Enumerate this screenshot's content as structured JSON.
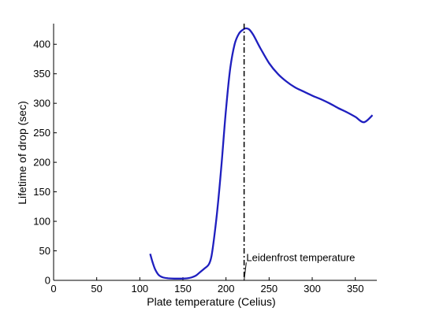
{
  "chart_data": {
    "type": "line",
    "title": "",
    "xlabel": "Plate temperature (Celius)",
    "ylabel": "Lifetime of drop (sec)",
    "xlim": [
      0,
      375
    ],
    "ylim": [
      0,
      435
    ],
    "xticks": [
      0,
      50,
      100,
      150,
      200,
      250,
      300,
      350
    ],
    "yticks": [
      0,
      50,
      100,
      150,
      200,
      250,
      300,
      350,
      400
    ],
    "grid": false,
    "series": [
      {
        "color": "#1f1fbf",
        "x": [
          112,
          115,
          118,
          122,
          127,
          133,
          140,
          148,
          155,
          160,
          165,
          170,
          175,
          180,
          183,
          186,
          190,
          195,
          200,
          205,
          210,
          215,
          220,
          223,
          227,
          232,
          240,
          250,
          260,
          270,
          280,
          290,
          300,
          310,
          320,
          330,
          340,
          350,
          360,
          370
        ],
        "y": [
          45,
          30,
          18,
          9,
          5,
          3.5,
          3,
          3,
          3.5,
          5,
          8,
          14,
          20,
          27,
          40,
          70,
          120,
          200,
          290,
          360,
          400,
          418,
          425,
          427,
          425,
          415,
          393,
          368,
          350,
          337,
          327,
          320,
          313,
          307,
          300,
          292,
          285,
          277,
          268,
          280
        ]
      }
    ],
    "annotations": [
      {
        "type": "vline",
        "x": 221,
        "style": "dash-dot",
        "color": "#000000"
      },
      {
        "type": "label",
        "text": "Leidenfrost temperature",
        "x": 229,
        "y": 33,
        "arrow_to": [
          221,
          0
        ]
      }
    ]
  }
}
